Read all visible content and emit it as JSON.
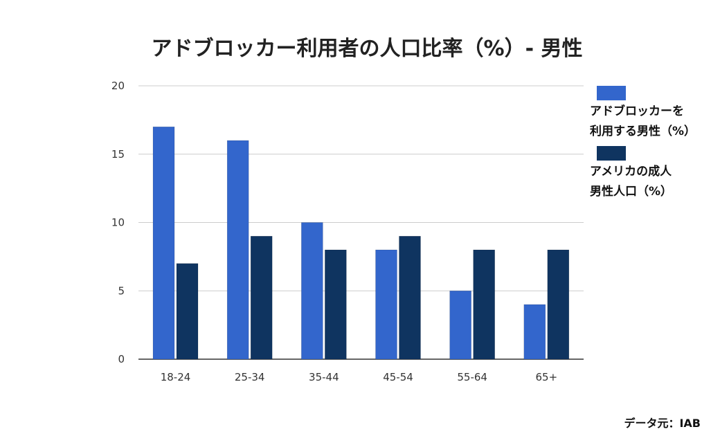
{
  "chart_data": {
    "type": "bar",
    "title": "アドブロッカー利用者の人口比率（%）- 男性",
    "categories": [
      "18-24",
      "25-34",
      "35-44",
      "45-54",
      "55-64",
      "65+"
    ],
    "series": [
      {
        "name": "アドブロッカーを利用する男性（%）",
        "legend_lines": [
          "アドブロッカーを",
          "利用する男性（%）"
        ],
        "color": "#3366cc",
        "values": [
          17,
          16,
          10,
          8,
          5,
          4
        ]
      },
      {
        "name": "アメリカの成人男性人口（%）",
        "legend_lines": [
          "アメリカの成人",
          "男性人口（%）"
        ],
        "color": "#0f3460",
        "values": [
          7,
          9,
          8,
          9,
          8,
          8
        ]
      }
    ],
    "ylim": [
      0,
      20
    ],
    "yticks": [
      0,
      5,
      10,
      15,
      20
    ],
    "grid": true,
    "legend_position": "right",
    "xlabel": "",
    "ylabel": ""
  },
  "source": "データ元：IAB"
}
